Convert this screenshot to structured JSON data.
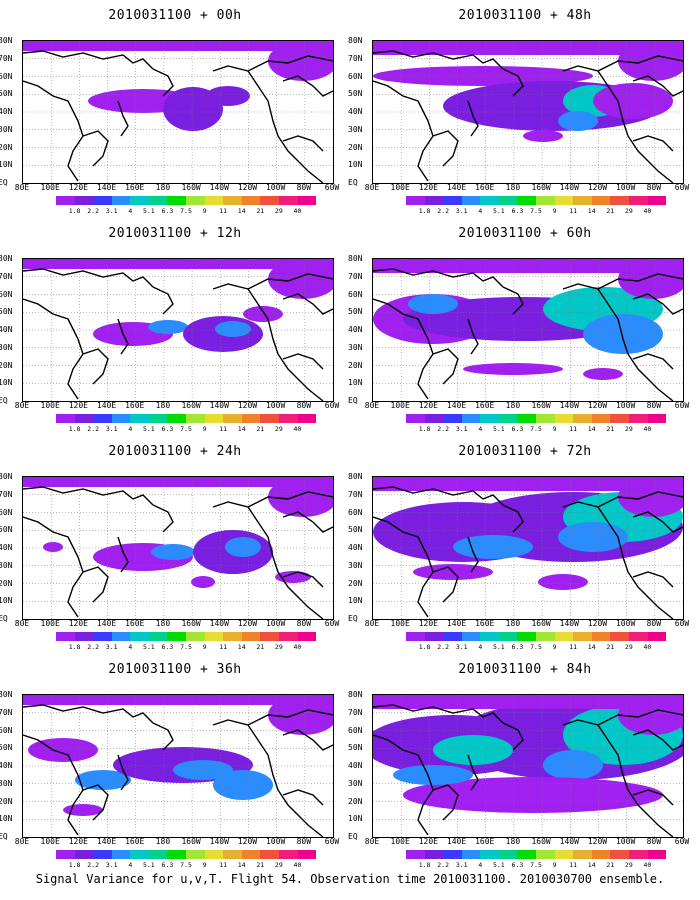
{
  "caption": "Signal Variance for u,v,T. Flight 54. Observation time 2010031100. 2010030700 ensemble.",
  "lat_labels": [
    "80N",
    "70N",
    "60N",
    "50N",
    "40N",
    "30N",
    "20N",
    "10N",
    "EQ"
  ],
  "lon_labels": [
    "80E",
    "100E",
    "120E",
    "140E",
    "160E",
    "180",
    "160W",
    "140W",
    "120W",
    "100W",
    "80W",
    "60W"
  ],
  "colorbar": {
    "levels": [
      "1.8",
      "2.2",
      "3.1",
      "4",
      "5.1",
      "6.3",
      "7.5",
      "9",
      "11",
      "14",
      "21",
      "29",
      "40"
    ],
    "colors": [
      "#a020f0",
      "#7a1ee0",
      "#3a3aff",
      "#2a8cff",
      "#00c8c8",
      "#00d28c",
      "#00dc00",
      "#a0e632",
      "#e6dc32",
      "#e6af2d",
      "#f08228",
      "#f0503c",
      "#f01e78",
      "#f0008c"
    ]
  },
  "panels": [
    {
      "title": "2010031100 + 00h",
      "intensity": 0
    },
    {
      "title": "2010031100 + 12h",
      "intensity": 1
    },
    {
      "title": "2010031100 + 24h",
      "intensity": 2
    },
    {
      "title": "2010031100 + 36h",
      "intensity": 3
    },
    {
      "title": "2010031100 + 48h",
      "intensity": 4
    },
    {
      "title": "2010031100 + 60h",
      "intensity": 5
    },
    {
      "title": "2010031100 + 72h",
      "intensity": 6
    },
    {
      "title": "2010031100 + 84h",
      "intensity": 7
    }
  ]
}
